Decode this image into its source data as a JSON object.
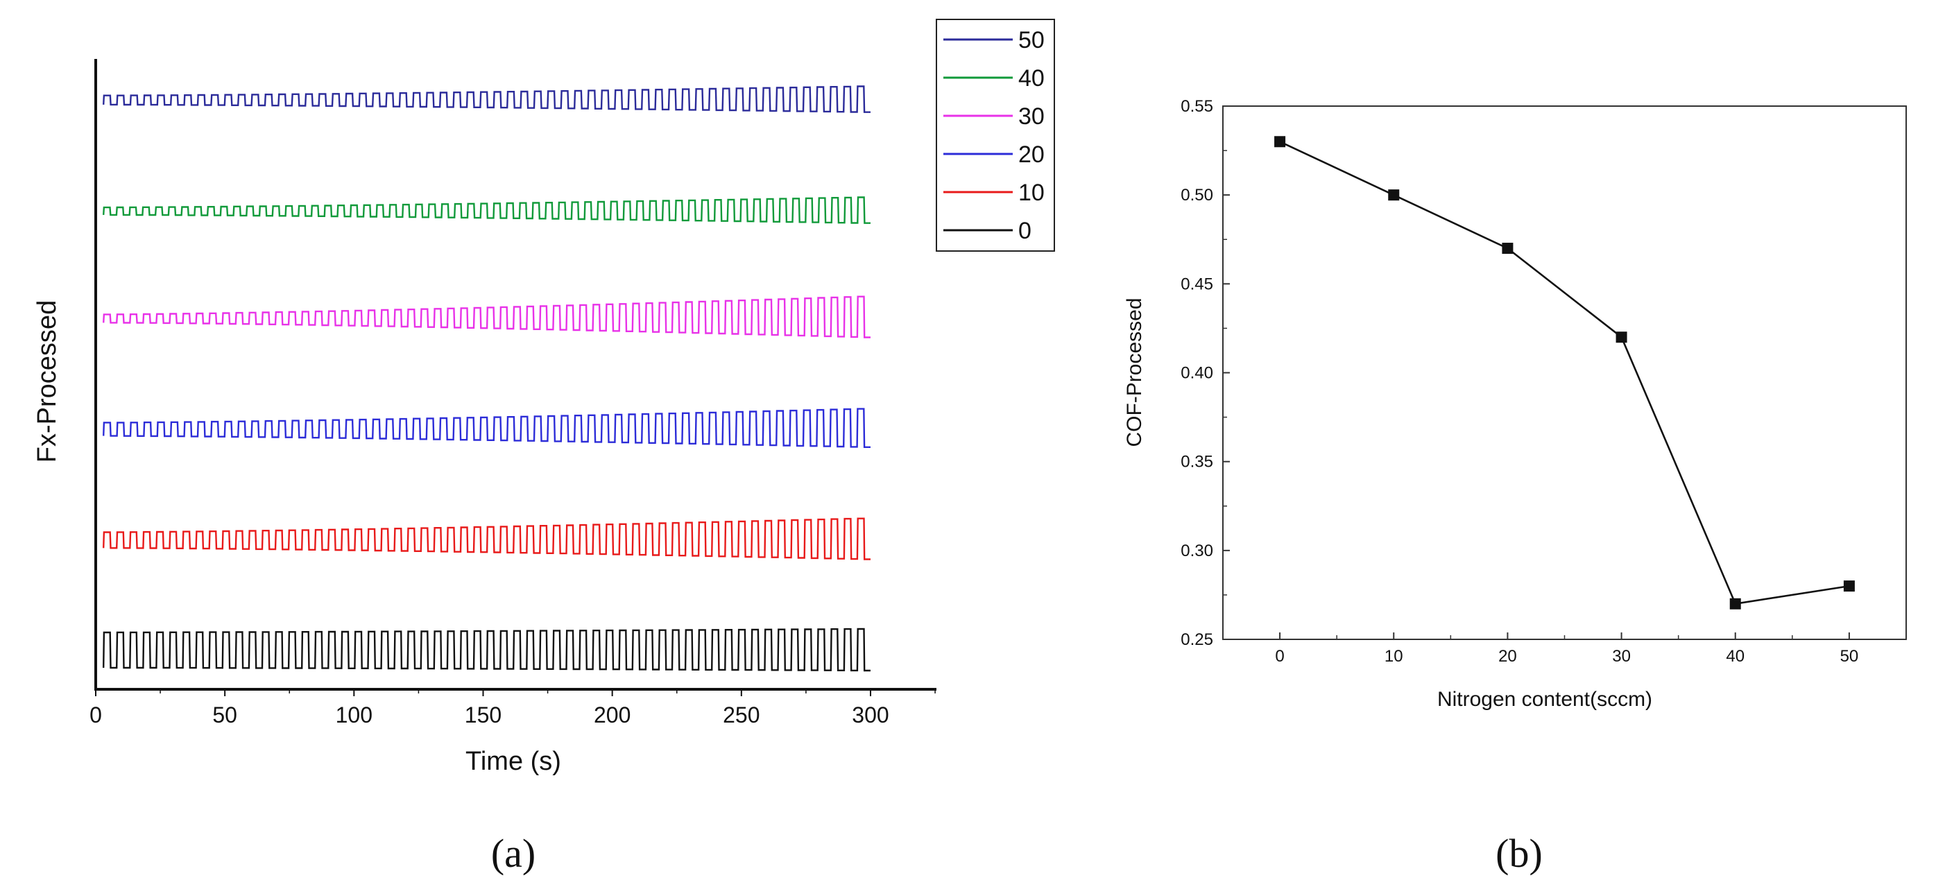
{
  "chart_data": [
    {
      "type": "line",
      "panel_label": "(a)",
      "title": "",
      "xlabel": "Time (s)",
      "ylabel": "Fx-Processed",
      "xlim": [
        0,
        325
      ],
      "x_ticks": [
        "0",
        "50",
        "100",
        "150",
        "200",
        "250",
        "300"
      ],
      "y_ticks": [],
      "legend_position": "top-right",
      "legend": [
        "50",
        "40",
        "30",
        "20",
        "10",
        "0"
      ],
      "series": [
        {
          "name": "50",
          "color": "#2b2b9a",
          "x_range": [
            3,
            300
          ],
          "cycles": 57,
          "amp_start": 0.22,
          "amp_end": 0.62
        },
        {
          "name": "40",
          "color": "#119a3a",
          "x_range": [
            3,
            300
          ],
          "cycles": 59,
          "amp_start": 0.18,
          "amp_end": 0.62
        },
        {
          "name": "30",
          "color": "#e832e8",
          "x_range": [
            3,
            300
          ],
          "cycles": 58,
          "amp_start": 0.2,
          "amp_end": 0.98
        },
        {
          "name": "20",
          "color": "#2c2cd8",
          "x_range": [
            3,
            300
          ],
          "cycles": 57,
          "amp_start": 0.32,
          "amp_end": 0.92
        },
        {
          "name": "10",
          "color": "#e81a1a",
          "x_range": [
            3,
            300
          ],
          "cycles": 58,
          "amp_start": 0.38,
          "amp_end": 0.98
        },
        {
          "name": "0",
          "color": "#111111",
          "x_range": [
            3,
            300
          ],
          "cycles": 58,
          "amp_start": 0.85,
          "amp_end": 1.0
        }
      ]
    },
    {
      "type": "line",
      "panel_label": "(b)",
      "title": "",
      "xlabel": "Nitrogen content(sccm)",
      "ylabel": "COF-Processed",
      "xlim": [
        -5,
        55
      ],
      "ylim": [
        0.25,
        0.55
      ],
      "x_ticks": [
        "0",
        "10",
        "20",
        "30",
        "40",
        "50"
      ],
      "y_ticks": [
        "0.25",
        "0.30",
        "0.35",
        "0.40",
        "0.45",
        "0.50",
        "0.55"
      ],
      "series": [
        {
          "name": "COF",
          "color": "#111111",
          "x": [
            0,
            10,
            20,
            30,
            40,
            50
          ],
          "y": [
            0.53,
            0.5,
            0.47,
            0.42,
            0.27,
            0.28
          ]
        }
      ]
    }
  ]
}
